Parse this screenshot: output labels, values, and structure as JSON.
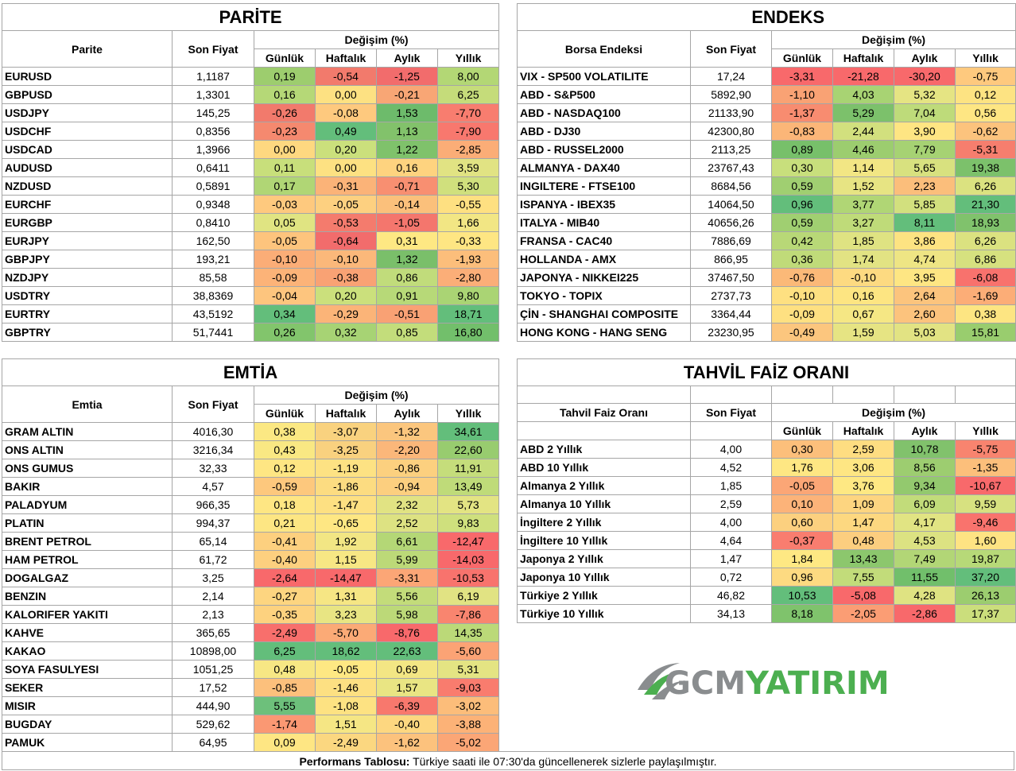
{
  "parite": {
    "title": "PARİTE",
    "col_name": "Parite",
    "col_price": "Son Fiyat",
    "col_change": "Değişim (%)",
    "sub": [
      "Günlük",
      "Haftalık",
      "Aylık",
      "Yıllık"
    ],
    "rows": [
      {
        "name": "EURUSD",
        "price": "1,1187",
        "d": "0,19",
        "w": "-0,54",
        "m": "-1,25",
        "y": "8,00",
        "c": [
          "#9dcd6e",
          "#f27a6c",
          "#f26c6c",
          "#b3d775"
        ]
      },
      {
        "name": "GBPUSD",
        "price": "1,3301",
        "d": "0,16",
        "w": "0,00",
        "m": "-0,21",
        "y": "6,25",
        "c": [
          "#b5d877",
          "#fde182",
          "#f8a675",
          "#c5dc7a"
        ]
      },
      {
        "name": "USDJPY",
        "price": "145,25",
        "d": "-0,26",
        "w": "-0,08",
        "m": "1,53",
        "y": "-7,70",
        "c": [
          "#f27a6c",
          "#fec97e",
          "#6dbb6b",
          "#f87d6f"
        ]
      },
      {
        "name": "USDCHF",
        "price": "0,8356",
        "d": "-0,23",
        "w": "0,49",
        "m": "1,13",
        "y": "-7,90",
        "c": [
          "#f5896f",
          "#63be7b",
          "#82c26b",
          "#f8786e"
        ]
      },
      {
        "name": "USDCAD",
        "price": "1,3966",
        "d": "0,00",
        "w": "0,20",
        "m": "1,22",
        "y": "-2,85",
        "c": [
          "#fed880",
          "#cbe07c",
          "#7fc26b",
          "#fbad77"
        ]
      },
      {
        "name": "AUDUSD",
        "price": "0,6411",
        "d": "0,11",
        "w": "0,00",
        "m": "0,16",
        "y": "3,59",
        "c": [
          "#c8df7b",
          "#fde182",
          "#fed37f",
          "#e1e383"
        ]
      },
      {
        "name": "NZDUSD",
        "price": "0,5891",
        "d": "0,17",
        "w": "-0,31",
        "m": "-0,71",
        "y": "5,30",
        "c": [
          "#b0d675",
          "#fbb378",
          "#f88f71",
          "#d0e07d"
        ]
      },
      {
        "name": "EURCHF",
        "price": "0,9348",
        "d": "-0,03",
        "w": "-0,05",
        "m": "-0,14",
        "y": "-0,55",
        "c": [
          "#fec97e",
          "#fdd080",
          "#fbc07b",
          "#fee081"
        ]
      },
      {
        "name": "EURGBP",
        "price": "0,8410",
        "d": "0,05",
        "w": "-0,53",
        "m": "-1,05",
        "y": "1,66",
        "c": [
          "#e0e482",
          "#f47b6d",
          "#f4766d",
          "#f2e684"
        ]
      },
      {
        "name": "EURJPY",
        "price": "162,50",
        "d": "-0,05",
        "w": "-0,64",
        "m": "0,31",
        "y": "-0,33",
        "c": [
          "#fdc47d",
          "#f26c6c",
          "#fee883",
          "#fee683"
        ]
      },
      {
        "name": "GBPJPY",
        "price": "193,21",
        "d": "-0,10",
        "w": "-0,10",
        "m": "1,32",
        "y": "-1,93",
        "c": [
          "#fbad77",
          "#fbb87a",
          "#7abf6a",
          "#fcbe7b"
        ]
      },
      {
        "name": "NZDJPY",
        "price": "85,58",
        "d": "-0,09",
        "w": "-0,38",
        "m": "0,86",
        "y": "-2,80",
        "c": [
          "#fcb378",
          "#f9a274",
          "#c1dc7b",
          "#fbae78"
        ]
      },
      {
        "name": "USDTRY",
        "price": "38,8369",
        "d": "-0,04",
        "w": "0,20",
        "m": "0,91",
        "y": "9,80",
        "c": [
          "#fdc57e",
          "#cbe07c",
          "#b7d978",
          "#aad474"
        ]
      },
      {
        "name": "EURTRY",
        "price": "43,5192",
        "d": "0,34",
        "w": "-0,29",
        "m": "-0,51",
        "y": "18,71",
        "c": [
          "#63be7b",
          "#fbb478",
          "#f9a174",
          "#63be7b"
        ]
      },
      {
        "name": "GBPTRY",
        "price": "51,7441",
        "d": "0,26",
        "w": "0,32",
        "m": "0,85",
        "y": "16,80",
        "c": [
          "#82c56c",
          "#a7d374",
          "#c3dd7b",
          "#72bf6b"
        ]
      }
    ]
  },
  "endeks": {
    "title": "ENDEKS",
    "col_name": "Borsa Endeksi",
    "col_price": "Son Fiyat",
    "col_change": "Değişim (%)",
    "sub": [
      "Günlük",
      "Haftalık",
      "Aylık",
      "Yıllık"
    ],
    "rows": [
      {
        "name": "VIX  - SP500 VOLATILITE",
        "price": "17,24",
        "d": "-3,31",
        "w": "-21,28",
        "m": "-30,20",
        "y": "-0,75",
        "c": [
          "#f8696b",
          "#f8696b",
          "#f8696b",
          "#fec97e"
        ]
      },
      {
        "name": "ABD - S&P500",
        "price": "5892,90",
        "d": "-1,10",
        "w": "4,03",
        "m": "5,32",
        "y": "0,12",
        "c": [
          "#f9a274",
          "#a8d373",
          "#e5e483",
          "#fde382"
        ]
      },
      {
        "name": "ABD - NASDAQ100",
        "price": "21133,90",
        "d": "-1,37",
        "w": "5,29",
        "m": "7,04",
        "y": "0,56",
        "c": [
          "#f88c70",
          "#7cc16b",
          "#bedb7a",
          "#fee683"
        ]
      },
      {
        "name": "ABD - DJ30",
        "price": "42300,80",
        "d": "-0,83",
        "w": "2,44",
        "m": "3,90",
        "y": "-0,62",
        "c": [
          "#fbb678",
          "#d2e07e",
          "#fee583",
          "#fcc37d"
        ]
      },
      {
        "name": "ABD - RUSSEL2000",
        "price": "2113,25",
        "d": "0,89",
        "w": "4,46",
        "m": "7,79",
        "y": "-5,31",
        "c": [
          "#77c06a",
          "#9ccd6f",
          "#a6d273",
          "#f67e6e"
        ]
      },
      {
        "name": "ALMANYA - DAX40",
        "price": "23767,43",
        "d": "0,30",
        "w": "1,14",
        "m": "5,65",
        "y": "19,38",
        "c": [
          "#c8df7c",
          "#f2e684",
          "#d8e17f",
          "#7cc16b"
        ]
      },
      {
        "name": "INGILTERE - FTSE100",
        "price": "8684,56",
        "d": "0,59",
        "w": "1,52",
        "m": "2,23",
        "y": "6,26",
        "c": [
          "#a0cf71",
          "#e7e483",
          "#fbbe7b",
          "#dbe280"
        ]
      },
      {
        "name": "ISPANYA - IBEX35",
        "price": "14064,50",
        "d": "0,96",
        "w": "3,77",
        "m": "5,85",
        "y": "21,30",
        "c": [
          "#63be7b",
          "#b0d675",
          "#d2e07e",
          "#63be7b"
        ]
      },
      {
        "name": "ITALYA - MIB40",
        "price": "40656,26",
        "d": "0,59",
        "w": "3,27",
        "m": "8,11",
        "y": "18,93",
        "c": [
          "#a0cf71",
          "#bfdb79",
          "#63be7b",
          "#80c26c"
        ]
      },
      {
        "name": "FRANSA - CAC40",
        "price": "7886,69",
        "d": "0,42",
        "w": "1,85",
        "m": "3,86",
        "y": "6,26",
        "c": [
          "#b8d877",
          "#dfe382",
          "#fde382",
          "#dbe280"
        ]
      },
      {
        "name": "HOLLANDA - AMX",
        "price": "866,95",
        "d": "0,36",
        "w": "1,74",
        "m": "4,74",
        "y": "6,86",
        "c": [
          "#c0db79",
          "#e2e383",
          "#eee584",
          "#d6e17f"
        ]
      },
      {
        "name": "JAPONYA - NIKKEI225",
        "price": "37467,50",
        "d": "-0,76",
        "w": "-0,10",
        "m": "3,95",
        "y": "-6,08",
        "c": [
          "#fbb978",
          "#fdda81",
          "#fee683",
          "#f8726d"
        ]
      },
      {
        "name": "TOKYO - TOPIX",
        "price": "2737,73",
        "d": "-0,10",
        "w": "0,16",
        "m": "2,64",
        "y": "-1,69",
        "c": [
          "#fee081",
          "#fde582",
          "#fcc47d",
          "#fcad77"
        ]
      },
      {
        "name": "ÇİN - SHANGHAI COMPOSITE",
        "price": "3364,44",
        "d": "-0,09",
        "w": "0,67",
        "m": "2,60",
        "y": "0,38",
        "c": [
          "#fee081",
          "#f5e784",
          "#fcc37d",
          "#fde582"
        ]
      },
      {
        "name": "HONG KONG - HANG SENG",
        "price": "23230,95",
        "d": "-0,49",
        "w": "1,59",
        "m": "5,03",
        "y": "15,81",
        "c": [
          "#fcc67e",
          "#e6e483",
          "#e2e383",
          "#99cd6e"
        ]
      }
    ]
  },
  "emtia": {
    "title": "EMTİA",
    "col_name": "Emtia",
    "col_price": "Son Fiyat",
    "col_change": "Değişim (%)",
    "sub": [
      "Günlük",
      "Haftalık",
      "Aylık",
      "Yıllık"
    ],
    "rows": [
      {
        "name": "GRAM ALTIN",
        "price": "4016,30",
        "d": "0,38",
        "w": "-3,07",
        "m": "-1,32",
        "y": "34,61",
        "c": [
          "#fbe883",
          "#f9d27f",
          "#fbc67e",
          "#63be7b"
        ]
      },
      {
        "name": "ONS ALTIN",
        "price": "3216,34",
        "d": "0,43",
        "w": "-3,25",
        "m": "-2,20",
        "y": "22,60",
        "c": [
          "#f9e883",
          "#f9d17f",
          "#fbb77a",
          "#98cc6f"
        ]
      },
      {
        "name": "ONS GUMUS",
        "price": "32,33",
        "d": "0,12",
        "w": "-1,19",
        "m": "-0,86",
        "y": "11,91",
        "c": [
          "#fee683",
          "#fde283",
          "#fcd07f",
          "#c5dd7b"
        ]
      },
      {
        "name": "BAKIR",
        "price": "4,57",
        "d": "-0,59",
        "w": "-1,86",
        "m": "-0,94",
        "y": "13,49",
        "c": [
          "#fdc87d",
          "#fcdc81",
          "#fccf7f",
          "#bfdb79"
        ]
      },
      {
        "name": "PALADYUM",
        "price": "966,35",
        "d": "0,18",
        "w": "-1,47",
        "m": "2,32",
        "y": "5,73",
        "c": [
          "#fee683",
          "#fde082",
          "#e1e383",
          "#e3e483"
        ]
      },
      {
        "name": "PLATIN",
        "price": "994,37",
        "d": "0,21",
        "w": "-0,65",
        "m": "2,52",
        "y": "9,83",
        "c": [
          "#fde683",
          "#fee783",
          "#dde282",
          "#cfe07d"
        ]
      },
      {
        "name": "BRENT PETROL",
        "price": "65,14",
        "d": "-0,41",
        "w": "1,92",
        "m": "6,61",
        "y": "-12,47",
        "c": [
          "#fdd07f",
          "#f2e684",
          "#b4d776",
          "#f8696b"
        ]
      },
      {
        "name": "HAM PETROL",
        "price": "61,72",
        "d": "-0,40",
        "w": "1,15",
        "m": "5,99",
        "y": "-14,03",
        "c": [
          "#fdd07f",
          "#f7e784",
          "#bcd978",
          "#f8696b"
        ]
      },
      {
        "name": "DOGALGAZ",
        "price": "3,25",
        "d": "-2,64",
        "w": "-14,47",
        "m": "-3,31",
        "y": "-10,53",
        "c": [
          "#f8696b",
          "#f8696b",
          "#fca676",
          "#f8736d"
        ]
      },
      {
        "name": "BENZIN",
        "price": "2,14",
        "d": "-0,27",
        "w": "1,31",
        "m": "5,56",
        "y": "6,19",
        "c": [
          "#fdd580",
          "#f6e684",
          "#c3dc7a",
          "#e1e383"
        ]
      },
      {
        "name": "KALORIFER YAKITI",
        "price": "2,13",
        "d": "-0,35",
        "w": "3,23",
        "m": "5,98",
        "y": "-7,86",
        "c": [
          "#fdd27f",
          "#e8e583",
          "#bcd978",
          "#f9856f"
        ]
      },
      {
        "name": "KAHVE",
        "price": "365,65",
        "d": "-2,49",
        "w": "-5,70",
        "m": "-8,76",
        "y": "14,35",
        "c": [
          "#f86f6c",
          "#fbaa76",
          "#f8696b",
          "#bbd978"
        ]
      },
      {
        "name": "KAKAO",
        "price": "10898,00",
        "d": "6,25",
        "w": "18,62",
        "m": "22,63",
        "y": "-5,60",
        "c": [
          "#63be7b",
          "#63be7b",
          "#63be7b",
          "#fba375"
        ]
      },
      {
        "name": "SOYA FASULYESI",
        "price": "1051,25",
        "d": "0,48",
        "w": "-0,05",
        "m": "0,69",
        "y": "5,31",
        "c": [
          "#f7e784",
          "#fee883",
          "#f3e684",
          "#e4e483"
        ]
      },
      {
        "name": "SEKER",
        "price": "17,52",
        "d": "-0,85",
        "w": "-1,46",
        "m": "1,57",
        "y": "-9,03",
        "c": [
          "#fcc07c",
          "#fde082",
          "#e9e583",
          "#f97c6e"
        ]
      },
      {
        "name": "MISIR",
        "price": "444,90",
        "d": "5,55",
        "w": "-1,08",
        "m": "-6,39",
        "y": "-3,02",
        "c": [
          "#6dc07b",
          "#fde282",
          "#f8786d",
          "#fcbd7a"
        ]
      },
      {
        "name": "BUGDAY",
        "price": "529,62",
        "d": "-1,74",
        "w": "1,51",
        "m": "-0,40",
        "y": "-3,88",
        "c": [
          "#fa9873",
          "#f5e684",
          "#fdd780",
          "#fcb277"
        ]
      },
      {
        "name": "PAMUK",
        "price": "64,95",
        "d": "0,09",
        "w": "-2,49",
        "m": "-1,62",
        "y": "-5,02",
        "c": [
          "#fee683",
          "#fbd780",
          "#fcc27d",
          "#fba676"
        ]
      }
    ]
  },
  "tahvil": {
    "title": "TAHVİL FAİZ ORANI",
    "col_name": "Tahvil Faiz Oranı",
    "col_price": "Son Fiyat",
    "col_change": "Değişim (%)",
    "sub": [
      "Günlük",
      "Haftalık",
      "Aylık",
      "Yıllık"
    ],
    "rows": [
      {
        "name": "ABD 2 Yıllık",
        "price": "4,00",
        "d": "0,30",
        "w": "2,59",
        "m": "10,78",
        "y": "-5,75",
        "c": [
          "#fcbf7b",
          "#fedd81",
          "#81c26c",
          "#f8846f"
        ]
      },
      {
        "name": "ABD 10 Yıllık",
        "price": "4,52",
        "d": "1,76",
        "w": "3,06",
        "m": "8,56",
        "y": "-1,35",
        "c": [
          "#fee783",
          "#fee683",
          "#9dcd70",
          "#fcbf7b"
        ]
      },
      {
        "name": "Almanya 2 Yıllık",
        "price": "1,85",
        "d": "-0,05",
        "w": "3,76",
        "m": "9,34",
        "y": "-10,67",
        "c": [
          "#fba676",
          "#fee883",
          "#93c96e",
          "#f8696b"
        ]
      },
      {
        "name": "Almanya 10 Yıllık",
        "price": "2,59",
        "d": "0,10",
        "w": "1,09",
        "m": "6,09",
        "y": "9,59",
        "c": [
          "#fcb379",
          "#fdd580",
          "#c2dc7a",
          "#d7e180"
        ]
      },
      {
        "name": "İngiltere 2 Yıllık",
        "price": "4,00",
        "d": "0,60",
        "w": "1,47",
        "m": "4,17",
        "y": "-9,46",
        "c": [
          "#fcd07f",
          "#fdd880",
          "#e1e483",
          "#f9736d"
        ]
      },
      {
        "name": "İngiltere 10 Yıllık",
        "price": "4,64",
        "d": "-0,37",
        "w": "0,48",
        "m": "4,53",
        "y": "1,60",
        "c": [
          "#f97d6f",
          "#fcce7f",
          "#dce282",
          "#fee383"
        ]
      },
      {
        "name": "Japonya 2 Yıllık",
        "price": "1,47",
        "d": "1,84",
        "w": "13,43",
        "m": "7,49",
        "y": "19,87",
        "c": [
          "#fee883",
          "#8cc76d",
          "#b2d676",
          "#b7d978"
        ]
      },
      {
        "name": "Japonya 10 Yıllık",
        "price": "0,72",
        "d": "0,96",
        "w": "7,55",
        "m": "11,55",
        "y": "37,20",
        "c": [
          "#fdda81",
          "#c2dc7a",
          "#71bf6b",
          "#63be7b"
        ]
      },
      {
        "name": "Türkiye 2 Yıllık",
        "price": "46,82",
        "d": "10,53",
        "w": "-5,08",
        "m": "4,28",
        "y": "26,13",
        "c": [
          "#63be7b",
          "#f8696b",
          "#dfe382",
          "#9ccd6f"
        ]
      },
      {
        "name": "Türkiye 10 Yıllık",
        "price": "34,13",
        "d": "8,18",
        "w": "-2,05",
        "m": "-2,86",
        "y": "17,37",
        "c": [
          "#7fc36c",
          "#fb9d74",
          "#f8696b",
          "#cbde7c"
        ]
      }
    ]
  },
  "logo": {
    "part1": "GCM",
    "part2": "YATIRIM",
    "colors": {
      "gray": "#8a8d8f",
      "green": "#4caf50"
    }
  },
  "footer": {
    "bold": "Performans Tablosu:",
    "text": " Türkiye saati ile 07:30'da güncellenerek sizlerle paylaşılmıştır."
  }
}
